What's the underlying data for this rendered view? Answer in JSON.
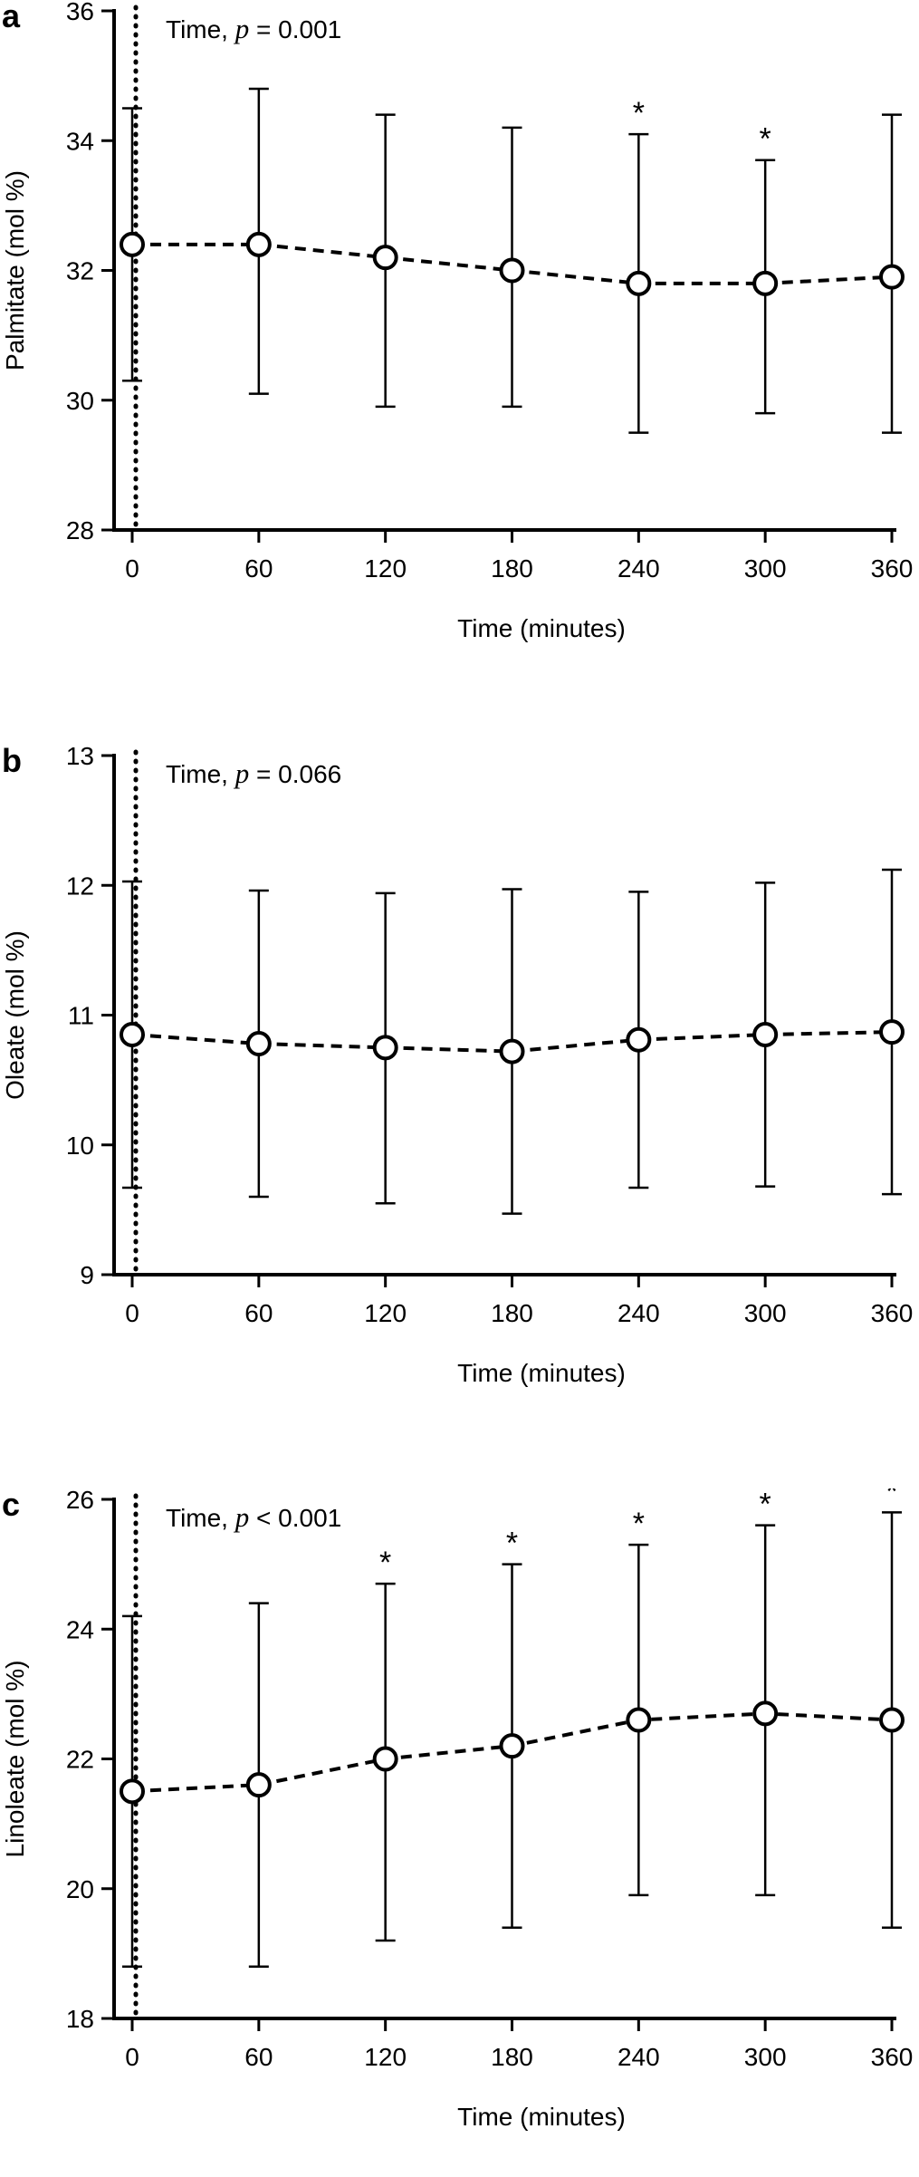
{
  "chart_data": [
    {
      "type": "line",
      "panel_label": "a",
      "ylabel": "Palmitate (mol %)",
      "xlabel": "Time (minutes)",
      "stat_prefix": "Time, ",
      "stat_p": "p",
      "stat_rest": " = 0.001",
      "x": [
        0,
        60,
        120,
        180,
        240,
        300,
        360
      ],
      "x_tick_labels": [
        "0",
        "60",
        "120",
        "180",
        "240",
        "300",
        "360"
      ],
      "y_ticks": [
        28,
        30,
        32,
        34,
        36
      ],
      "y_tick_labels": [
        "28",
        "30",
        "32",
        "34",
        "36"
      ],
      "ylim": [
        28,
        36
      ],
      "series": [
        {
          "values": [
            32.4,
            32.4,
            32.2,
            32.0,
            31.8,
            31.8,
            31.9
          ],
          "err_low": [
            30.3,
            30.1,
            29.9,
            29.9,
            29.5,
            29.8,
            29.5
          ],
          "err_high": [
            34.5,
            34.8,
            34.4,
            34.2,
            34.1,
            33.7,
            34.4
          ],
          "significant": [
            false,
            false,
            false,
            false,
            true,
            true,
            false
          ]
        }
      ],
      "significance_marker": "*",
      "line_style": "dashed",
      "reference_line_x": 0
    },
    {
      "type": "line",
      "panel_label": "b",
      "ylabel": "Oleate (mol %)",
      "xlabel": "Time (minutes)",
      "stat_prefix": "Time, ",
      "stat_p": "p",
      "stat_rest": " = 0.066",
      "x": [
        0,
        60,
        120,
        180,
        240,
        300,
        360
      ],
      "x_tick_labels": [
        "0",
        "60",
        "120",
        "180",
        "240",
        "300",
        "360"
      ],
      "y_ticks": [
        9,
        10,
        11,
        12,
        13
      ],
      "y_tick_labels": [
        "9",
        "10",
        "11",
        "12",
        "13"
      ],
      "ylim": [
        9,
        13
      ],
      "series": [
        {
          "values": [
            10.85,
            10.78,
            10.75,
            10.72,
            10.81,
            10.85,
            10.87
          ],
          "err_low": [
            9.67,
            9.6,
            9.55,
            9.47,
            9.67,
            9.68,
            9.62
          ],
          "err_high": [
            12.03,
            11.96,
            11.94,
            11.97,
            11.95,
            12.02,
            12.12
          ],
          "significant": [
            false,
            false,
            false,
            false,
            false,
            false,
            false
          ]
        }
      ],
      "significance_marker": "*",
      "line_style": "dashed",
      "reference_line_x": 0
    },
    {
      "type": "line",
      "panel_label": "c",
      "ylabel": "Linoleate (mol %)",
      "xlabel": "Time (minutes)",
      "stat_prefix": "Time, ",
      "stat_p": "p",
      "stat_rest": " < 0.001",
      "x": [
        0,
        60,
        120,
        180,
        240,
        300,
        360
      ],
      "x_tick_labels": [
        "0",
        "60",
        "120",
        "180",
        "240",
        "300",
        "360"
      ],
      "y_ticks": [
        18,
        20,
        22,
        24,
        26
      ],
      "y_tick_labels": [
        "18",
        "20",
        "22",
        "24",
        "26"
      ],
      "ylim": [
        18,
        26
      ],
      "series": [
        {
          "values": [
            21.5,
            21.6,
            22.0,
            22.2,
            22.6,
            22.7,
            22.6
          ],
          "err_low": [
            18.8,
            18.8,
            19.2,
            19.4,
            19.9,
            19.9,
            19.4
          ],
          "err_high": [
            24.2,
            24.4,
            24.7,
            25.0,
            25.3,
            25.6,
            25.8
          ],
          "significant": [
            false,
            false,
            true,
            true,
            true,
            true,
            true
          ]
        }
      ],
      "significance_marker": "*",
      "line_style": "dashed",
      "reference_line_x": 0
    }
  ]
}
